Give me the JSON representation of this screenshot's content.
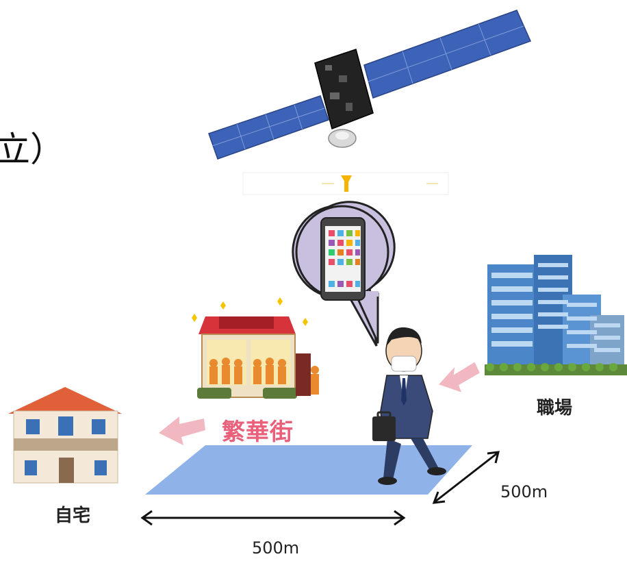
{
  "fragment_text": "立）",
  "labels": {
    "home": "自宅",
    "workplace": "職場",
    "downtown": "繁華街"
  },
  "dimensions": {
    "width": "500m",
    "depth": "500m"
  },
  "colors": {
    "area": "#8fb3e8",
    "arrow_pink": "#f2b8c2",
    "downtown_text": "#e8607a",
    "bubble": "#c9c0e0",
    "panel": "#3d63b8"
  },
  "icons": [
    "satellite-icon",
    "signal-icon",
    "smartphone-icon",
    "person-icon",
    "house-icon",
    "shop-icon",
    "office-building-icon"
  ]
}
